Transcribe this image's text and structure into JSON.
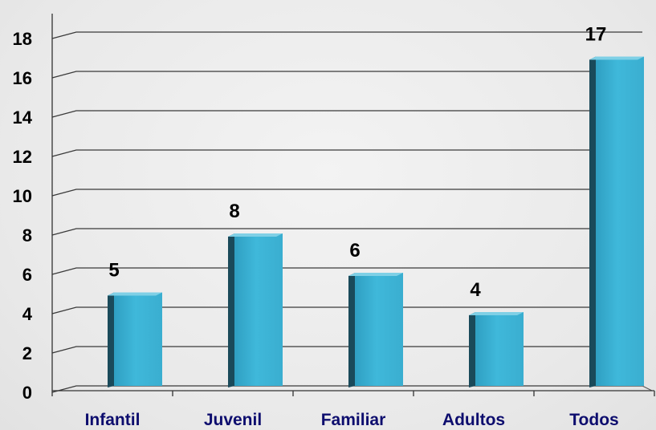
{
  "chart_data": {
    "type": "bar",
    "categories": [
      "Infantil",
      "Juvenil",
      "Familiar",
      "Adultos",
      "Todos"
    ],
    "values": [
      5,
      8,
      6,
      4,
      17
    ],
    "title": "",
    "xlabel": "",
    "ylabel": "",
    "ylim": [
      0,
      18
    ],
    "yticks": [
      0,
      2,
      4,
      6,
      8,
      10,
      12,
      14,
      16,
      18
    ],
    "grid": true,
    "legend": "none",
    "data_labels": [
      "5",
      "8",
      "6",
      "4",
      "17"
    ],
    "colors": {
      "bar_front": "#37b0d2",
      "bar_side": "#1a4a5a",
      "bar_top": "#7fd0e6",
      "grid": "#3a3a3a",
      "category_text": "#0d0d6e"
    }
  }
}
